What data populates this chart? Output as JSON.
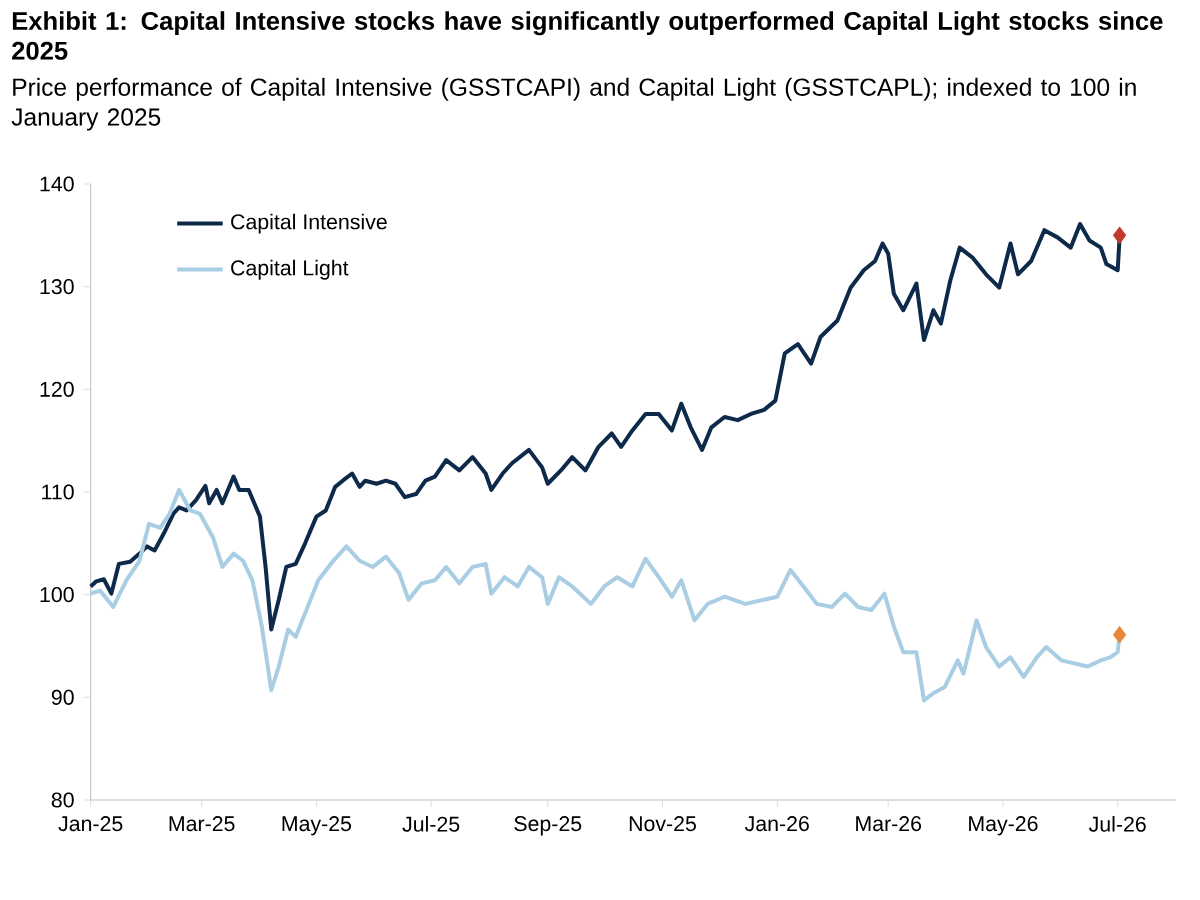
{
  "chart_data": {
    "type": "line",
    "title": "Exhibit 1: Capital Intensive stocks have significantly outperformed Capital Light stocks since 2025",
    "subtitle": "Price performance of Capital Intensive (GSSTCAPI) and Capital Light (GSSTCAPL); indexed to 100 in January 2025",
    "xlim": [
      "2025-01-01",
      "2026-08-01"
    ],
    "xticks": [
      {
        "value": "2025-01-01",
        "label": "Jan-25"
      },
      {
        "value": "2025-03-01",
        "label": "Mar-25"
      },
      {
        "value": "2025-05-01",
        "label": "May-25"
      },
      {
        "value": "2025-07-01",
        "label": "Jul-25"
      },
      {
        "value": "2025-09-01",
        "label": "Sep-25"
      },
      {
        "value": "2025-11-01",
        "label": "Nov-25"
      },
      {
        "value": "2026-01-01",
        "label": "Jan-26"
      },
      {
        "value": "2026-03-01",
        "label": "Mar-26"
      },
      {
        "value": "2026-05-01",
        "label": "May-26"
      },
      {
        "value": "2026-07-01",
        "label": "Jul-26"
      }
    ],
    "ylim": [
      80,
      140
    ],
    "yticks": [
      80,
      90,
      100,
      110,
      120,
      130,
      140
    ],
    "grid": false,
    "legend": "top left",
    "marker": "none",
    "line_style": "solid",
    "series": [
      {
        "name": "Capital Intensive",
        "color": "#0d2a4a",
        "x": [
          "2025-01-01",
          "2025-01-04",
          "2025-01-08",
          "2025-01-12",
          "2025-01-16",
          "2025-01-22",
          "2025-01-27",
          "2025-01-31",
          "2025-02-04",
          "2025-02-09",
          "2025-02-14",
          "2025-02-17",
          "2025-02-21",
          "2025-02-26",
          "2025-03-03",
          "2025-03-05",
          "2025-03-09",
          "2025-03-12",
          "2025-03-18",
          "2025-03-21",
          "2025-03-26",
          "2025-04-01",
          "2025-04-04",
          "2025-04-07",
          "2025-04-11",
          "2025-04-15",
          "2025-04-20",
          "2025-04-25",
          "2025-05-01",
          "2025-05-06",
          "2025-05-11",
          "2025-05-15",
          "2025-05-20",
          "2025-05-24",
          "2025-05-27",
          "2025-06-02",
          "2025-06-07",
          "2025-06-12",
          "2025-06-17",
          "2025-06-23",
          "2025-06-28",
          "2025-07-03",
          "2025-07-09",
          "2025-07-16",
          "2025-07-23",
          "2025-07-30",
          "2025-08-02",
          "2025-08-08",
          "2025-08-13",
          "2025-08-22",
          "2025-08-29",
          "2025-09-01",
          "2025-09-08",
          "2025-09-14",
          "2025-09-21",
          "2025-09-28",
          "2025-10-05",
          "2025-10-10",
          "2025-10-16",
          "2025-10-23",
          "2025-10-30",
          "2025-11-06",
          "2025-11-11",
          "2025-11-16",
          "2025-11-22",
          "2025-11-27",
          "2025-12-04",
          "2025-12-11",
          "2025-12-18",
          "2025-12-25",
          "2025-12-31",
          "2026-01-05",
          "2026-01-12",
          "2026-01-19",
          "2026-01-24",
          "2026-02-02",
          "2026-02-09",
          "2026-02-16",
          "2026-02-22",
          "2026-02-26",
          "2026-03-01",
          "2026-03-04",
          "2026-03-09",
          "2026-03-16",
          "2026-03-20",
          "2026-03-25",
          "2026-03-29",
          "2026-04-03",
          "2026-04-08",
          "2026-04-15",
          "2026-04-22",
          "2026-04-29",
          "2026-05-05",
          "2026-05-09",
          "2026-05-16",
          "2026-05-23",
          "2026-05-30",
          "2026-06-06",
          "2026-06-11",
          "2026-06-16",
          "2026-06-22",
          "2026-06-25",
          "2026-07-01",
          "2026-07-02"
        ],
        "values": [
          100.8,
          101.3,
          101.5,
          100.1,
          103,
          103.2,
          104,
          104.7,
          104.3,
          106,
          107.9,
          108.5,
          108.2,
          109.2,
          110.6,
          108.9,
          110.2,
          108.9,
          111.5,
          110.2,
          110.2,
          107.6,
          102.7,
          96.6,
          99.5,
          102.7,
          103,
          105,
          107.6,
          108.2,
          110.5,
          111.1,
          111.8,
          110.5,
          111.1,
          110.8,
          111.1,
          110.8,
          109.5,
          109.8,
          111.1,
          111.5,
          113.1,
          112.1,
          113.4,
          111.8,
          110.2,
          111.8,
          112.8,
          114.1,
          112.4,
          110.8,
          112.1,
          113.4,
          112.1,
          114.4,
          115.7,
          114.4,
          116,
          117.6,
          117.6,
          116,
          118.6,
          116.3,
          114.1,
          116.3,
          117.3,
          117,
          117.6,
          118,
          118.9,
          123.5,
          124.4,
          122.5,
          125.1,
          126.7,
          129.9,
          131.6,
          132.5,
          134.2,
          133.2,
          129.3,
          127.7,
          130.3,
          124.8,
          127.7,
          126.4,
          130.6,
          133.8,
          132.8,
          131.2,
          129.9,
          134.2,
          131.2,
          132.5,
          135.5,
          134.8,
          133.8,
          136.1,
          134.5,
          133.8,
          132.2,
          131.6,
          134.8
        ]
      },
      {
        "name": "Capital Light",
        "color": "#a9cde3",
        "x": [
          "2025-01-01",
          "2025-01-06",
          "2025-01-13",
          "2025-01-20",
          "2025-01-27",
          "2025-02-01",
          "2025-02-07",
          "2025-02-12",
          "2025-02-17",
          "2025-02-23",
          "2025-02-28",
          "2025-03-07",
          "2025-03-12",
          "2025-03-18",
          "2025-03-23",
          "2025-03-28",
          "2025-04-02",
          "2025-04-07",
          "2025-04-11",
          "2025-04-16",
          "2025-04-20",
          "2025-04-25",
          "2025-05-02",
          "2025-05-10",
          "2025-05-17",
          "2025-05-24",
          "2025-05-31",
          "2025-06-07",
          "2025-06-14",
          "2025-06-19",
          "2025-06-26",
          "2025-07-03",
          "2025-07-09",
          "2025-07-16",
          "2025-07-23",
          "2025-07-30",
          "2025-08-02",
          "2025-08-09",
          "2025-08-16",
          "2025-08-22",
          "2025-08-29",
          "2025-09-01",
          "2025-09-07",
          "2025-09-14",
          "2025-09-24",
          "2025-10-01",
          "2025-10-08",
          "2025-10-16",
          "2025-10-23",
          "2025-10-30",
          "2025-11-06",
          "2025-11-11",
          "2025-11-18",
          "2025-11-25",
          "2025-12-04",
          "2025-12-15",
          "2025-12-25",
          "2026-01-01",
          "2026-01-08",
          "2026-01-15",
          "2026-01-22",
          "2026-01-30",
          "2026-02-06",
          "2026-02-13",
          "2026-02-20",
          "2026-02-27",
          "2026-03-04",
          "2026-03-09",
          "2026-03-16",
          "2026-03-20",
          "2026-03-25",
          "2026-03-31",
          "2026-04-07",
          "2026-04-10",
          "2026-04-17",
          "2026-04-22",
          "2026-04-29",
          "2026-05-05",
          "2026-05-12",
          "2026-05-19",
          "2026-05-24",
          "2026-06-01",
          "2026-06-08",
          "2026-06-15",
          "2026-06-22",
          "2026-06-27",
          "2026-07-01",
          "2026-07-02"
        ],
        "values": [
          100.1,
          100.4,
          98.8,
          101.4,
          103.3,
          106.9,
          106.5,
          107.9,
          110.2,
          108.2,
          107.9,
          105.6,
          102.7,
          104,
          103.3,
          101.4,
          96.9,
          90.7,
          93,
          96.6,
          95.9,
          98.2,
          101.4,
          103.3,
          104.7,
          103.3,
          102.7,
          103.7,
          102.1,
          99.5,
          101.1,
          101.4,
          102.7,
          101.1,
          102.7,
          103,
          100.1,
          101.7,
          100.8,
          102.7,
          101.7,
          99.1,
          101.7,
          100.8,
          99.1,
          100.8,
          101.7,
          100.8,
          103.5,
          101.7,
          99.8,
          101.4,
          97.5,
          99.1,
          99.8,
          99.1,
          99.5,
          99.8,
          102.4,
          100.8,
          99.1,
          98.8,
          100.1,
          98.8,
          98.5,
          100.1,
          96.9,
          94.4,
          94.4,
          89.7,
          90.4,
          91,
          93.6,
          92.3,
          97.5,
          94.9,
          93,
          93.9,
          92,
          93.9,
          94.9,
          93.6,
          93.3,
          93,
          93.6,
          93.9,
          94.4,
          96.1
        ]
      },
      {
        "color": "#c0392b",
        "type": "scatter",
        "marker": "diamond",
        "x": [
          "2026-07-02"
        ],
        "values": [
          135.0
        ]
      },
      {
        "color": "#e8873a",
        "type": "scatter",
        "marker": "diamond",
        "x": [
          "2026-07-02"
        ],
        "values": [
          96.1
        ]
      }
    ]
  }
}
